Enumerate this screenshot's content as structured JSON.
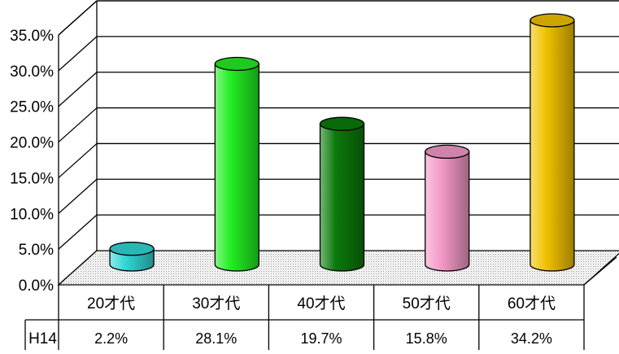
{
  "chart_data": {
    "type": "bar",
    "categories": [
      "20才代",
      "30才代",
      "40才代",
      "50才代",
      "60才代"
    ],
    "series": [
      {
        "name": "H14",
        "values": [
          2.2,
          28.1,
          19.7,
          15.8,
          34.2
        ],
        "value_labels": [
          "2.2%",
          "28.1%",
          "19.7%",
          "15.8%",
          "34.2%"
        ]
      }
    ],
    "ylim": [
      0,
      35
    ],
    "yticks": [
      0,
      5,
      10,
      15,
      20,
      25,
      30,
      35
    ],
    "ytick_labels": [
      "0.0%",
      "5.0%",
      "10.0%",
      "15.0%",
      "20.0%",
      "25.0%",
      "30.0%",
      "35.0%"
    ],
    "grid": true,
    "style": "3d-cylinder",
    "data_table": true,
    "colors": [
      "#33d6d6",
      "#22ee22",
      "#0a7a0a",
      "#f59ac8",
      "#f2c200"
    ]
  }
}
